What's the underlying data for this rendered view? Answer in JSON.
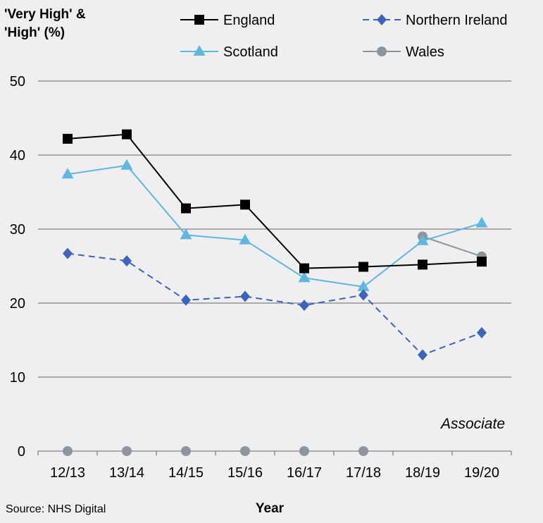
{
  "chart_data": {
    "type": "line",
    "ylabel_lines": [
      "'Very High' &",
      "'High' (%)"
    ],
    "xlabel": "Year",
    "source": "Source: NHS Digital",
    "annotation": "Associate",
    "categories": [
      "12/13",
      "13/14",
      "14/15",
      "15/16",
      "16/17",
      "17/18",
      "18/19",
      "19/20"
    ],
    "ylim": [
      0,
      50
    ],
    "yticks": [
      0,
      10,
      20,
      30,
      40,
      50
    ],
    "grid": true,
    "legend_position": "top",
    "series": [
      {
        "name": "England",
        "color": "#000000",
        "marker": "square",
        "dash": "solid",
        "values": [
          42.2,
          42.8,
          32.8,
          33.3,
          24.7,
          24.9,
          25.2,
          25.6
        ]
      },
      {
        "name": "Northern Ireland",
        "color": "#3a63c4",
        "marker": "diamond",
        "dash": "dashed",
        "values": [
          26.7,
          25.7,
          20.4,
          20.9,
          19.7,
          21.1,
          13.0,
          16.0
        ]
      },
      {
        "name": "Scotland",
        "color": "#5bb8e4",
        "marker": "triangle",
        "dash": "solid",
        "values": [
          37.4,
          38.6,
          29.2,
          28.5,
          23.4,
          22.2,
          28.4,
          30.8
        ]
      },
      {
        "name": "Wales",
        "color": "#8c959e",
        "marker": "circle",
        "dash": "solid",
        "values": [
          0,
          0,
          0,
          0,
          0,
          0,
          29.0,
          26.3
        ]
      }
    ]
  }
}
